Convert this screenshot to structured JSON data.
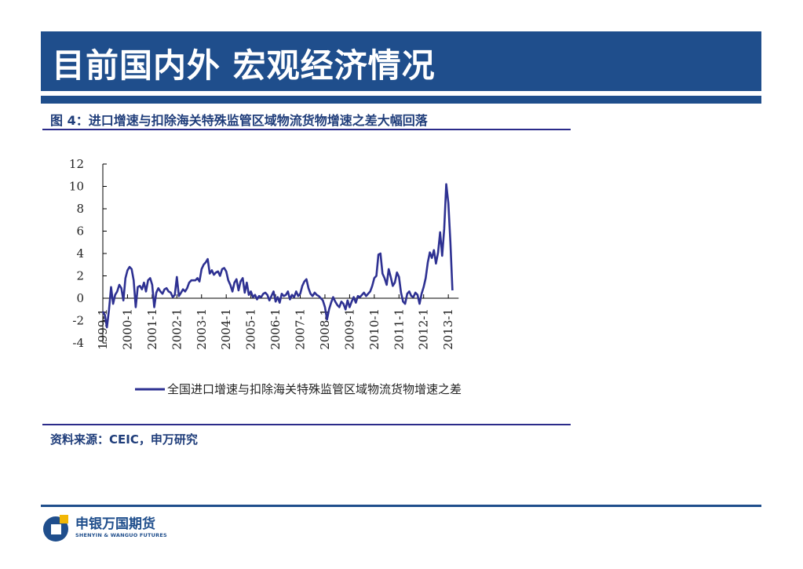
{
  "header": {
    "title": "目前国内外  宏观经济情况"
  },
  "figure": {
    "caption": "图 4：进口增速与扣除海关特殊监管区域物流货物增速之差大幅回落",
    "source": "资料来源：CEIC，申万研究"
  },
  "logo": {
    "name": "申银万国期货",
    "name_en": "SHENYIN & WANGUO FUTURES",
    "colors": {
      "primary": "#1f4e8c",
      "accent": "#f2b705"
    }
  },
  "colors": {
    "title_bar": "#1f4e8c",
    "series_line": "#2e3192",
    "caption_text": "#1f3d7a"
  },
  "chart_data": {
    "type": "line",
    "title": "",
    "xlabel": "",
    "ylabel": "",
    "ylim": [
      -4,
      12
    ],
    "yticks": [
      -4,
      -2,
      0,
      2,
      4,
      6,
      8,
      10,
      12
    ],
    "ytick_labels": [
      "-4",
      "-2",
      "0",
      "2",
      "4",
      "6",
      "8",
      "10",
      "12"
    ],
    "xticks": [
      "1999-1",
      "2000-1",
      "2001-1",
      "2002-1",
      "2003-1",
      "2004-1",
      "2005-1",
      "2006-1",
      "2007-1",
      "2008-1",
      "2009-1",
      "2010-1",
      "2011-1",
      "2012-1",
      "2013-1"
    ],
    "grid": false,
    "legend_position": "bottom",
    "series": [
      {
        "name": "全国进口增速与扣除海关特殊监管区域物流货物增速之差",
        "color": "#2e3192",
        "x_start": "1999-01",
        "frequency": "monthly",
        "values": [
          -1.2,
          -1.5,
          -2.6,
          -1.0,
          1.0,
          -0.5,
          0.3,
          0.6,
          1.2,
          0.9,
          -0.2,
          1.8,
          2.5,
          2.8,
          2.6,
          1.6,
          -0.8,
          1.0,
          1.1,
          0.8,
          1.4,
          0.6,
          1.6,
          1.8,
          1.2,
          -0.8,
          0.5,
          0.9,
          0.6,
          0.4,
          0.8,
          0.9,
          0.6,
          0.5,
          0.1,
          0.3,
          1.9,
          0.2,
          0.5,
          0.8,
          0.6,
          0.9,
          1.4,
          1.6,
          1.6,
          1.6,
          1.8,
          1.5,
          2.6,
          3.0,
          3.2,
          3.5,
          2.2,
          2.5,
          2.1,
          2.3,
          2.4,
          2.0,
          2.6,
          2.7,
          2.4,
          1.6,
          1.2,
          0.6,
          1.4,
          1.7,
          0.7,
          1.5,
          1.8,
          0.5,
          1.4,
          0.3,
          0.6,
          0.1,
          0.3,
          -0.1,
          0.2,
          0.1,
          0.4,
          0.5,
          0.3,
          -0.2,
          0.2,
          0.6,
          -0.3,
          0.1,
          -0.4,
          0.4,
          0.2,
          0.3,
          0.6,
          -0.1,
          0.3,
          0.1,
          0.6,
          0.2,
          0.4,
          1.1,
          1.5,
          1.7,
          0.9,
          0.4,
          0.2,
          0.5,
          0.3,
          0.2,
          0.0,
          -0.2,
          -0.8,
          -1.9,
          -1.0,
          -0.4,
          0.1,
          -0.3,
          -0.6,
          -0.8,
          -0.3,
          -0.5,
          -1.0,
          -0.2,
          -0.8,
          -0.3,
          0.1,
          -0.4,
          0.2,
          0.1,
          0.3,
          0.5,
          0.2,
          0.4,
          0.6,
          1.1,
          1.8,
          2.0,
          3.9,
          4.0,
          2.2,
          1.8,
          1.2,
          2.6,
          1.9,
          1.1,
          1.4,
          2.3,
          1.9,
          0.5,
          -0.3,
          -0.5,
          0.4,
          0.6,
          0.2,
          0.1,
          0.5,
          0.3,
          -0.5,
          0.4,
          1.0,
          1.8,
          3.2,
          4.1,
          3.6,
          4.3,
          3.1,
          4.1,
          5.9,
          3.8,
          6.2,
          10.2,
          8.5,
          5.0,
          0.7
        ]
      }
    ]
  }
}
